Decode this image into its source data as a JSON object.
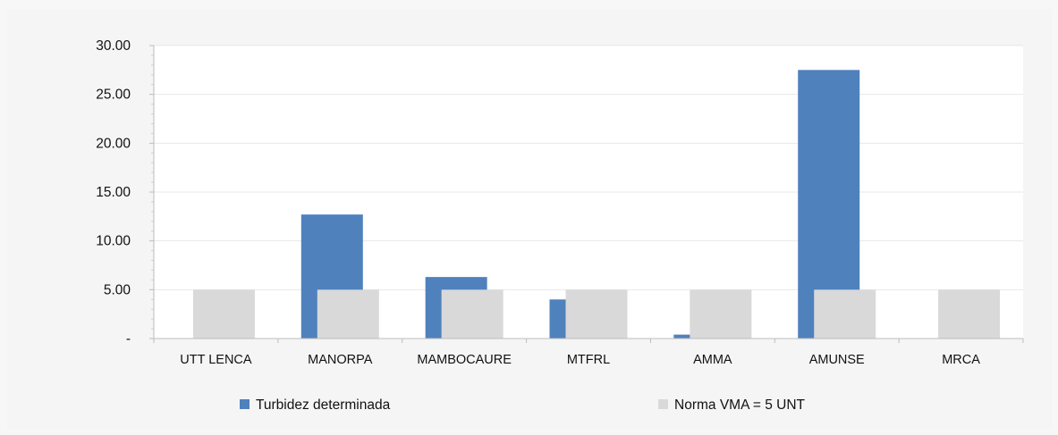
{
  "chart_data": {
    "type": "bar",
    "categories": [
      "UTT LENCA",
      "MANORPA",
      "MAMBOCAURE",
      "MTFRL",
      "AMMA",
      "AMUNSE",
      "MRCA"
    ],
    "series": [
      {
        "name": "Turbidez determinada",
        "values": [
          0,
          12.7,
          6.3,
          4.0,
          0.4,
          27.5,
          0
        ],
        "color": "#4f81bd"
      },
      {
        "name": "Norma VMA = 5 UNT",
        "values": [
          5,
          5,
          5,
          5,
          5,
          5,
          5
        ],
        "color": "#d9d9d9"
      }
    ],
    "y_ticks": [
      {
        "value": 0,
        "label": "-"
      },
      {
        "value": 5,
        "label": "5.00"
      },
      {
        "value": 10,
        "label": "10.00"
      },
      {
        "value": 15,
        "label": "15.00"
      },
      {
        "value": 20,
        "label": "20.00"
      },
      {
        "value": 25,
        "label": "25.00"
      },
      {
        "value": 30,
        "label": "30.00"
      }
    ],
    "ylim": [
      0,
      30
    ],
    "title": "",
    "xlabel": "",
    "ylabel": "",
    "grid": true,
    "legend_position": "bottom"
  }
}
